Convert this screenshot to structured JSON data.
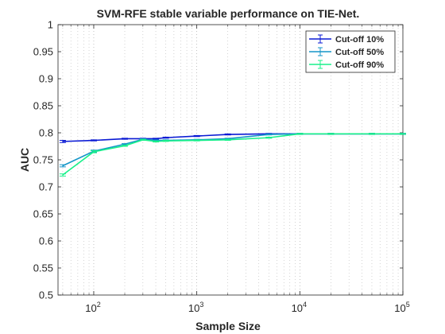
{
  "chart_data": {
    "type": "line",
    "title": "SVM-RFE stable variable performance on TIE-Net.",
    "xlabel": "Sample Size",
    "ylabel": "AUC",
    "xscale": "log",
    "xlim": [
      45,
      100000
    ],
    "ylim": [
      0.5,
      1
    ],
    "y_ticks": [
      0.5,
      0.55,
      0.6,
      0.65,
      0.7,
      0.75,
      0.8,
      0.85,
      0.9,
      0.95,
      1
    ],
    "y_tick_labels": [
      "0.5",
      "0.55",
      "0.6",
      "0.65",
      "0.7",
      "0.75",
      "0.8",
      "0.85",
      "0.9",
      "0.95",
      "1"
    ],
    "x_ticks": [
      {
        "value": 100,
        "base": "10",
        "exp": "2"
      },
      {
        "value": 1000,
        "base": "10",
        "exp": "3"
      },
      {
        "value": 10000,
        "base": "10",
        "exp": "4"
      },
      {
        "value": 100000,
        "base": "10",
        "exp": "5"
      }
    ],
    "grid": "vertical-dotted-minor",
    "legend_position": "top-right",
    "x": [
      50,
      100,
      200,
      300,
      400,
      500,
      1000,
      2000,
      5000,
      10000,
      20000,
      50000,
      100000
    ],
    "series": [
      {
        "name": "Cut-off 10%",
        "color": "#0a1ad4",
        "values": [
          0.784,
          0.786,
          0.789,
          0.789,
          0.789,
          0.791,
          0.794,
          0.797,
          0.798,
          0.798,
          0.798,
          0.798,
          0.798
        ],
        "errors": [
          0.002,
          0.001,
          0.001,
          0.001,
          0.001,
          0.001,
          0.001,
          0.001,
          0.001,
          0.001,
          0.001,
          0.001,
          0.001
        ]
      },
      {
        "name": "Cut-off 50%",
        "color": "#1596c8",
        "values": [
          0.739,
          0.766,
          0.779,
          0.788,
          0.786,
          0.786,
          0.787,
          0.789,
          0.797,
          0.798,
          0.798,
          0.798,
          0.798
        ],
        "errors": [
          0.002,
          0.002,
          0.001,
          0.001,
          0.001,
          0.001,
          0.001,
          0.001,
          0.001,
          0.001,
          0.001,
          0.001,
          0.001
        ]
      },
      {
        "name": "Cut-off 90%",
        "color": "#19f08a",
        "values": [
          0.722,
          0.765,
          0.776,
          0.787,
          0.784,
          0.785,
          0.786,
          0.787,
          0.791,
          0.798,
          0.798,
          0.798,
          0.798
        ],
        "errors": [
          0.002,
          0.002,
          0.001,
          0.001,
          0.001,
          0.001,
          0.001,
          0.001,
          0.001,
          0.001,
          0.001,
          0.001,
          0.001
        ]
      }
    ]
  }
}
